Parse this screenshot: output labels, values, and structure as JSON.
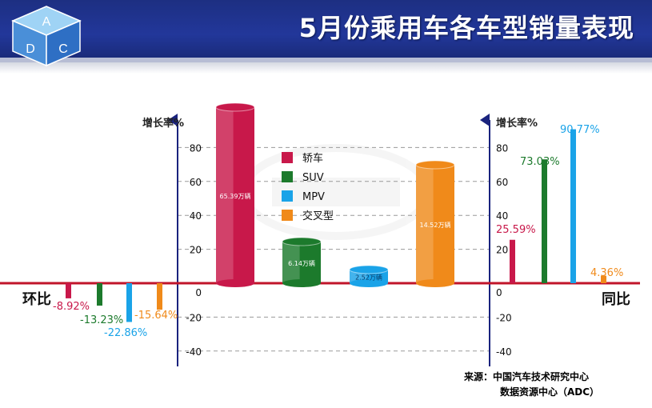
{
  "header": {
    "title": "5月份乘用车各车型销量表现",
    "logo_letters": [
      "A",
      "D",
      "C"
    ]
  },
  "colors": {
    "sedan": "#c8184a",
    "suv": "#1c7a2c",
    "mpv": "#1aa3e8",
    "crossover": "#f08a1a",
    "baseline": "#c0142a",
    "axis": "#1a237e",
    "header_bg": "#22379a"
  },
  "chart_data": {
    "type": "bar",
    "legend": [
      "轿车",
      "SUV",
      "MPV",
      "交叉型"
    ],
    "axes": {
      "left_label": "增长率%",
      "right_label": "增长率%",
      "ticks": [
        "80",
        "60",
        "40",
        "20",
        "0",
        "-20",
        "-40"
      ],
      "tick_values": [
        80,
        60,
        40,
        20,
        0,
        -20,
        -40
      ],
      "ylim": [
        -45,
        92
      ]
    },
    "mom": {
      "label": "环比",
      "series": [
        {
          "name": "轿车",
          "value": -8.92,
          "label": "-8.92%"
        },
        {
          "name": "SUV",
          "value": -13.23,
          "label": "-13.23%"
        },
        {
          "name": "MPV",
          "value": -22.86,
          "label": "-22.86%"
        },
        {
          "name": "交叉型",
          "value": -15.64,
          "label": "-15.64%"
        }
      ]
    },
    "yoy": {
      "label": "同比",
      "series": [
        {
          "name": "轿车",
          "value": 25.59,
          "label": "25.59%"
        },
        {
          "name": "SUV",
          "value": 73.03,
          "label": "73.03%"
        },
        {
          "name": "MPV",
          "value": 90.77,
          "label": "90.77%"
        },
        {
          "name": "交叉型",
          "value": 4.36,
          "label": "4.36%"
        }
      ]
    },
    "volumes": {
      "unit": "万辆",
      "series": [
        {
          "name": "轿车",
          "value": 65.39,
          "label": "65.39万辆"
        },
        {
          "name": "SUV",
          "value": 6.14,
          "label": "6.14万辆"
        },
        {
          "name": "MPV",
          "value": 2.52,
          "label": "2.52万辆"
        },
        {
          "name": "交叉型",
          "value": 14.52,
          "label": "14.52万辆"
        }
      ]
    }
  },
  "source": {
    "line1": "来源：中国汽车技术研究中心",
    "line2": "数据资源中心（ADC）"
  }
}
